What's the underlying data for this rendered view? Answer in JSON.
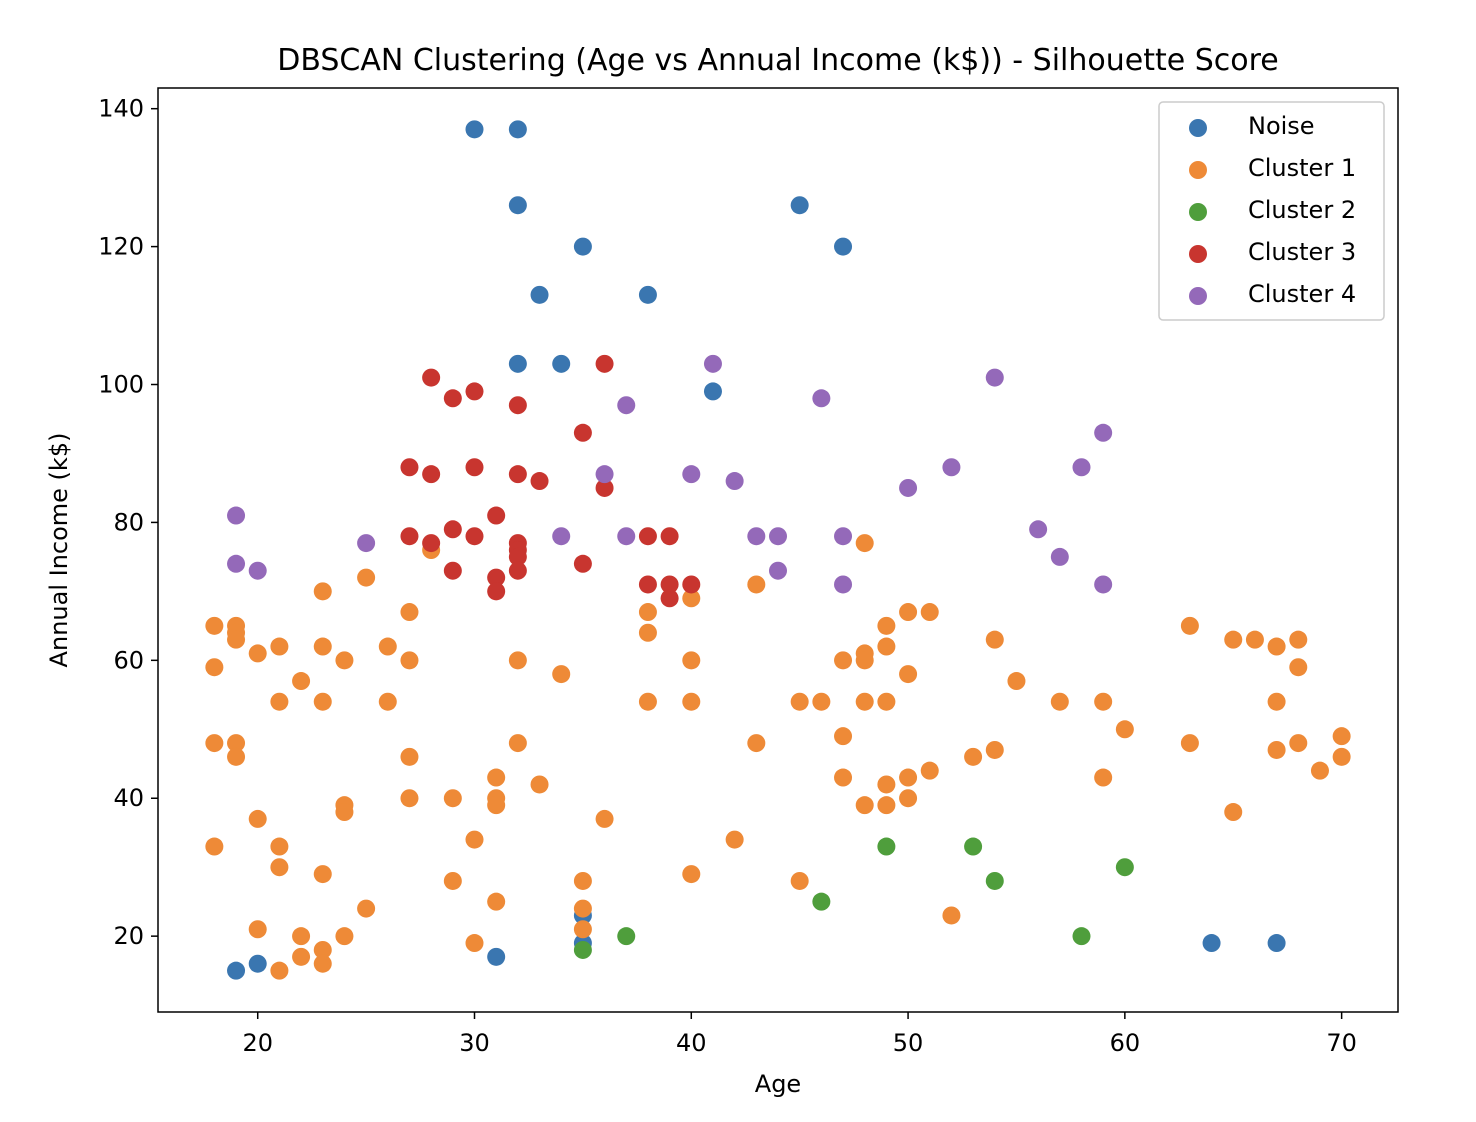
{
  "chart_data": {
    "type": "scatter",
    "title": "DBSCAN Clustering (Age vs Annual Income (k$)) - Silhouette Score",
    "xlabel": "Age",
    "ylabel": "Annual Income (k$)",
    "xlim": [
      15.4,
      72.6
    ],
    "ylim": [
      9.0,
      143.0
    ],
    "xticks": [
      20,
      30,
      40,
      50,
      60,
      70
    ],
    "yticks": [
      20,
      40,
      60,
      80,
      100,
      120,
      140
    ],
    "grid": false,
    "legend_position": "top-right",
    "series": [
      {
        "name": "Noise",
        "color": "#3a76b0",
        "points": [
          [
            30,
            137
          ],
          [
            32,
            137
          ],
          [
            32,
            126
          ],
          [
            45,
            126
          ],
          [
            35,
            120
          ],
          [
            47,
            120
          ],
          [
            33,
            113
          ],
          [
            38,
            113
          ],
          [
            32,
            103
          ],
          [
            34,
            103
          ],
          [
            41,
            99
          ],
          [
            19,
            15
          ],
          [
            20,
            16
          ],
          [
            31,
            17
          ],
          [
            35,
            19
          ],
          [
            35,
            23
          ],
          [
            64,
            19
          ],
          [
            67,
            19
          ]
        ]
      },
      {
        "name": "Cluster 1",
        "color": "#ee8a37",
        "points": [
          [
            18,
            65
          ],
          [
            18,
            59
          ],
          [
            18,
            48
          ],
          [
            18,
            33
          ],
          [
            19,
            65
          ],
          [
            19,
            64
          ],
          [
            19,
            63
          ],
          [
            19,
            48
          ],
          [
            19,
            46
          ],
          [
            20,
            61
          ],
          [
            20,
            37
          ],
          [
            20,
            21
          ],
          [
            21,
            62
          ],
          [
            21,
            54
          ],
          [
            21,
            33
          ],
          [
            21,
            30
          ],
          [
            21,
            15
          ],
          [
            22,
            57
          ],
          [
            22,
            20
          ],
          [
            22,
            17
          ],
          [
            23,
            70
          ],
          [
            23,
            62
          ],
          [
            23,
            54
          ],
          [
            23,
            29
          ],
          [
            23,
            18
          ],
          [
            23,
            16
          ],
          [
            24,
            60
          ],
          [
            24,
            39
          ],
          [
            24,
            38
          ],
          [
            24,
            20
          ],
          [
            25,
            72
          ],
          [
            25,
            24
          ],
          [
            26,
            62
          ],
          [
            26,
            54
          ],
          [
            27,
            67
          ],
          [
            27,
            60
          ],
          [
            27,
            46
          ],
          [
            27,
            40
          ],
          [
            28,
            76
          ],
          [
            29,
            40
          ],
          [
            29,
            28
          ],
          [
            30,
            34
          ],
          [
            30,
            19
          ],
          [
            31,
            43
          ],
          [
            31,
            40
          ],
          [
            31,
            39
          ],
          [
            31,
            25
          ],
          [
            32,
            60
          ],
          [
            32,
            48
          ],
          [
            33,
            42
          ],
          [
            34,
            58
          ],
          [
            35,
            28
          ],
          [
            35,
            24
          ],
          [
            35,
            21
          ],
          [
            36,
            37
          ],
          [
            38,
            67
          ],
          [
            38,
            64
          ],
          [
            38,
            54
          ],
          [
            40,
            69
          ],
          [
            40,
            60
          ],
          [
            40,
            54
          ],
          [
            40,
            29
          ],
          [
            42,
            34
          ],
          [
            43,
            71
          ],
          [
            43,
            48
          ],
          [
            45,
            54
          ],
          [
            45,
            28
          ],
          [
            46,
            54
          ],
          [
            47,
            60
          ],
          [
            47,
            49
          ],
          [
            47,
            43
          ],
          [
            48,
            77
          ],
          [
            48,
            61
          ],
          [
            48,
            60
          ],
          [
            48,
            54
          ],
          [
            48,
            39
          ],
          [
            49,
            65
          ],
          [
            49,
            62
          ],
          [
            49,
            54
          ],
          [
            49,
            42
          ],
          [
            49,
            39
          ],
          [
            50,
            67
          ],
          [
            50,
            58
          ],
          [
            50,
            43
          ],
          [
            50,
            40
          ],
          [
            51,
            67
          ],
          [
            51,
            44
          ],
          [
            52,
            23
          ],
          [
            53,
            46
          ],
          [
            54,
            63
          ],
          [
            54,
            47
          ],
          [
            55,
            57
          ],
          [
            57,
            54
          ],
          [
            59,
            54
          ],
          [
            59,
            43
          ],
          [
            60,
            50
          ],
          [
            63,
            65
          ],
          [
            63,
            48
          ],
          [
            65,
            63
          ],
          [
            65,
            38
          ],
          [
            66,
            63
          ],
          [
            67,
            62
          ],
          [
            67,
            54
          ],
          [
            67,
            47
          ],
          [
            68,
            63
          ],
          [
            68,
            59
          ],
          [
            68,
            48
          ],
          [
            69,
            44
          ],
          [
            70,
            49
          ],
          [
            70,
            46
          ]
        ]
      },
      {
        "name": "Cluster 2",
        "color": "#4f9e3c",
        "points": [
          [
            35,
            18
          ],
          [
            37,
            20
          ],
          [
            46,
            25
          ],
          [
            49,
            33
          ],
          [
            53,
            33
          ],
          [
            54,
            28
          ],
          [
            58,
            20
          ],
          [
            60,
            30
          ]
        ]
      },
      {
        "name": "Cluster 3",
        "color": "#c8352f",
        "points": [
          [
            28,
            101
          ],
          [
            29,
            98
          ],
          [
            30,
            99
          ],
          [
            32,
            97
          ],
          [
            36,
            103
          ],
          [
            35,
            93
          ],
          [
            27,
            88
          ],
          [
            28,
            87
          ],
          [
            30,
            88
          ],
          [
            32,
            87
          ],
          [
            33,
            86
          ],
          [
            36,
            85
          ],
          [
            31,
            81
          ],
          [
            27,
            78
          ],
          [
            28,
            77
          ],
          [
            29,
            79
          ],
          [
            30,
            78
          ],
          [
            32,
            77
          ],
          [
            32,
            76
          ],
          [
            32,
            75
          ],
          [
            32,
            73
          ],
          [
            29,
            73
          ],
          [
            31,
            72
          ],
          [
            31,
            70
          ],
          [
            35,
            74
          ],
          [
            38,
            78
          ],
          [
            38,
            71
          ],
          [
            39,
            78
          ],
          [
            39,
            71
          ],
          [
            39,
            69
          ],
          [
            40,
            71
          ]
        ]
      },
      {
        "name": "Cluster 4",
        "color": "#9469b9",
        "points": [
          [
            19,
            81
          ],
          [
            19,
            74
          ],
          [
            20,
            73
          ],
          [
            25,
            77
          ],
          [
            34,
            78
          ],
          [
            36,
            87
          ],
          [
            37,
            97
          ],
          [
            37,
            78
          ],
          [
            40,
            87
          ],
          [
            41,
            103
          ],
          [
            42,
            86
          ],
          [
            43,
            78
          ],
          [
            44,
            78
          ],
          [
            44,
            73
          ],
          [
            46,
            98
          ],
          [
            47,
            78
          ],
          [
            47,
            71
          ],
          [
            50,
            85
          ],
          [
            52,
            88
          ],
          [
            54,
            101
          ],
          [
            56,
            79
          ],
          [
            57,
            75
          ],
          [
            58,
            88
          ],
          [
            59,
            93
          ],
          [
            59,
            71
          ]
        ]
      }
    ]
  }
}
